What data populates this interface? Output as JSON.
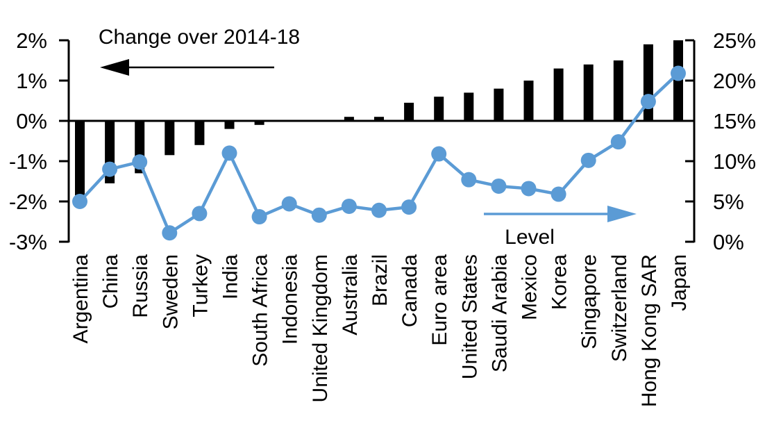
{
  "chart_data": {
    "type": "bar+line",
    "title": "Change over 2014-18",
    "categories": [
      "Argentina",
      "China",
      "Russia",
      "Sweden",
      "Turkey",
      "India",
      "South Africa",
      "Indonesia",
      "United Kingdom",
      "Australia",
      "Brazil",
      "Canada",
      "Euro area",
      "United States",
      "Saudi Arabia",
      "Mexico",
      "Korea",
      "Singapore",
      "Switzerland",
      "Hong Kong SAR",
      "Japan"
    ],
    "series": [
      {
        "name": "Change over 2014-18",
        "type": "bar",
        "axis": "left",
        "color": "#000000",
        "values": [
          -1.85,
          -1.55,
          -1.3,
          -0.85,
          -0.6,
          -0.2,
          -0.1,
          0,
          0,
          0.1,
          0.1,
          0.45,
          0.6,
          0.7,
          0.8,
          1.0,
          1.3,
          1.4,
          1.5,
          1.9,
          2.0
        ]
      },
      {
        "name": "Level",
        "type": "line",
        "axis": "right",
        "color": "#5b9bd5",
        "values": [
          5.0,
          9.0,
          9.9,
          1.1,
          3.5,
          11.0,
          3.1,
          4.7,
          3.3,
          4.4,
          3.9,
          4.3,
          10.9,
          7.7,
          6.9,
          6.6,
          5.9,
          10.1,
          12.4,
          17.4,
          20.9
        ]
      }
    ],
    "left_axis": {
      "tick_labels": [
        "2%",
        "1%",
        "0%",
        "-1%",
        "-2%",
        "-3%"
      ],
      "min": -3,
      "max": 2,
      "step": 1
    },
    "right_axis": {
      "tick_labels": [
        "25%",
        "20%",
        "15%",
        "10%",
        "5%",
        "0%"
      ],
      "min": 0,
      "max": 25,
      "step": 5
    },
    "annotations": [
      {
        "text": "Change over 2014-18",
        "arrow": "left",
        "color": "#000000"
      },
      {
        "text": "Level",
        "arrow": "right",
        "color": "#5b9bd5"
      }
    ],
    "grid": false,
    "legend_position": "none"
  }
}
